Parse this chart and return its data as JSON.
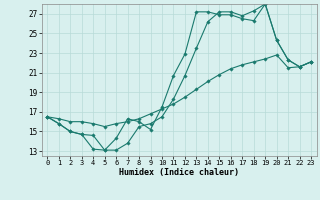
{
  "xlabel": "Humidex (Indice chaleur)",
  "bg_color": "#d8f0ee",
  "line_color": "#1a7a6e",
  "grid_color": "#b8dbd8",
  "xlim": [
    -0.5,
    23.5
  ],
  "ylim": [
    12.5,
    28.0
  ],
  "yticks": [
    13,
    15,
    17,
    19,
    21,
    23,
    25,
    27
  ],
  "xticks": [
    0,
    1,
    2,
    3,
    4,
    5,
    6,
    7,
    8,
    9,
    10,
    11,
    12,
    13,
    14,
    15,
    16,
    17,
    18,
    19,
    20,
    21,
    22,
    23
  ],
  "line1_x": [
    0,
    1,
    2,
    3,
    4,
    5,
    6,
    7,
    8,
    9,
    10,
    11,
    12,
    13,
    14,
    15,
    16,
    17,
    18,
    19,
    20,
    21,
    22,
    23
  ],
  "line1_y": [
    16.5,
    15.8,
    15.0,
    14.7,
    13.2,
    13.1,
    14.3,
    16.3,
    16.0,
    15.2,
    17.5,
    20.7,
    22.9,
    27.2,
    27.2,
    26.9,
    26.9,
    26.5,
    26.3,
    28.0,
    24.3,
    22.3,
    21.6,
    22.1
  ],
  "line2_x": [
    0,
    1,
    2,
    3,
    4,
    5,
    6,
    7,
    8,
    9,
    10,
    11,
    12,
    13,
    14,
    15,
    16,
    17,
    18,
    19,
    20,
    21,
    22,
    23
  ],
  "line2_y": [
    16.5,
    15.8,
    15.0,
    14.7,
    14.6,
    13.1,
    13.1,
    13.8,
    15.5,
    15.8,
    16.5,
    18.3,
    20.7,
    23.5,
    26.2,
    27.2,
    27.2,
    26.8,
    27.3,
    28.0,
    24.3,
    22.3,
    21.6,
    22.1
  ],
  "line3_x": [
    0,
    1,
    2,
    3,
    4,
    5,
    6,
    7,
    8,
    9,
    10,
    11,
    12,
    13,
    14,
    15,
    16,
    17,
    18,
    19,
    20,
    21,
    22,
    23
  ],
  "line3_y": [
    16.5,
    16.3,
    16.0,
    16.0,
    15.8,
    15.5,
    15.8,
    16.0,
    16.3,
    16.8,
    17.3,
    17.8,
    18.5,
    19.3,
    20.1,
    20.8,
    21.4,
    21.8,
    22.1,
    22.4,
    22.8,
    21.5,
    21.6,
    22.1
  ]
}
